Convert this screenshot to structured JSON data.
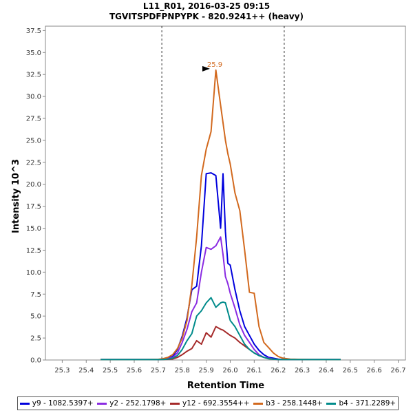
{
  "chart_data": {
    "type": "line",
    "title": "L11_R01, 2016-03-25 09:15",
    "subtitle": "TGVITSPDFPNPYPK - 820.9241++ (heavy)",
    "xlabel": "Retention Time",
    "ylabel": "Intensity 10^3",
    "xlim": [
      25.23,
      26.73
    ],
    "ylim": [
      0,
      38
    ],
    "xticks": [
      "25.3",
      "25.4",
      "25.5",
      "25.6",
      "25.7",
      "25.8",
      "25.9",
      "26.0",
      "26.1",
      "26.2",
      "26.3",
      "26.4",
      "26.5",
      "26.6",
      "26.7"
    ],
    "yticks": [
      "0.0",
      "2.5",
      "5.0",
      "7.5",
      "10.0",
      "12.5",
      "15.0",
      "17.5",
      "20.0",
      "22.5",
      "25.0",
      "27.5",
      "30.0",
      "32.5",
      "35.0",
      "37.5"
    ],
    "vlines": [
      25.715,
      26.225
    ],
    "peak_annotation": {
      "x": 25.924,
      "y": 33.0,
      "label": "25.9",
      "color": "#d2691e"
    },
    "grid": false,
    "legend_position": "bottom",
    "x": [
      25.46,
      25.5,
      25.55,
      25.6,
      25.65,
      25.7,
      25.72,
      25.74,
      25.76,
      25.78,
      25.8,
      25.82,
      25.84,
      25.86,
      25.88,
      25.9,
      25.92,
      25.94,
      25.96,
      25.97,
      25.98,
      25.99,
      26.0,
      26.02,
      26.04,
      26.06,
      26.08,
      26.1,
      26.12,
      26.14,
      26.16,
      26.18,
      26.2,
      26.22,
      26.25,
      26.3,
      26.35,
      26.4,
      26.46
    ],
    "series": [
      {
        "name": "y9 - 1082.5397+",
        "color": "#0000dd",
        "values": [
          0.05,
          0.05,
          0.05,
          0.05,
          0.05,
          0.06,
          0.1,
          0.2,
          0.4,
          1.2,
          2.7,
          4.8,
          8.0,
          8.4,
          13.0,
          21.2,
          21.3,
          21.0,
          15.0,
          21.2,
          14.6,
          11.0,
          10.8,
          8.0,
          5.6,
          3.8,
          2.8,
          1.8,
          1.1,
          0.6,
          0.3,
          0.2,
          0.1,
          0.06,
          0.05,
          0.05,
          0.05,
          0.05,
          0.05
        ]
      },
      {
        "name": "y2 - 252.1798+",
        "color": "#8a2be2",
        "values": [
          0.05,
          0.05,
          0.05,
          0.05,
          0.05,
          0.05,
          0.08,
          0.15,
          0.3,
          0.8,
          2.0,
          3.5,
          5.5,
          6.5,
          10.0,
          12.8,
          12.6,
          13.0,
          14.0,
          12.0,
          9.5,
          8.7,
          7.6,
          5.9,
          4.0,
          2.8,
          2.0,
          1.2,
          0.6,
          0.3,
          0.2,
          0.1,
          0.05,
          0.05,
          0.05,
          0.05,
          0.05,
          0.05,
          0.05
        ]
      },
      {
        "name": "y12 - 692.3554++",
        "color": "#a52a2a",
        "values": [
          0.05,
          0.05,
          0.05,
          0.05,
          0.05,
          0.05,
          0.06,
          0.08,
          0.12,
          0.3,
          0.6,
          1.0,
          1.3,
          2.2,
          1.8,
          3.1,
          2.6,
          3.8,
          3.5,
          3.4,
          3.2,
          3.0,
          2.8,
          2.5,
          2.0,
          1.6,
          1.2,
          0.8,
          0.5,
          0.3,
          0.15,
          0.1,
          0.05,
          0.05,
          0.05,
          0.05,
          0.05,
          0.05,
          0.05
        ]
      },
      {
        "name": "b3 - 258.1448+",
        "color": "#d2691e",
        "values": [
          0.05,
          0.05,
          0.05,
          0.05,
          0.05,
          0.08,
          0.15,
          0.3,
          0.6,
          1.3,
          2.5,
          4.5,
          8.5,
          14.0,
          21.0,
          24.0,
          26.0,
          33.0,
          29.0,
          27.0,
          25.0,
          23.5,
          22.3,
          19.0,
          17.0,
          12.5,
          7.7,
          7.6,
          3.8,
          2.0,
          1.4,
          0.8,
          0.4,
          0.2,
          0.1,
          0.07,
          0.05,
          0.05,
          0.05
        ]
      },
      {
        "name": "b4 - 371.2289+",
        "color": "#008b8b",
        "values": [
          0.05,
          0.05,
          0.05,
          0.05,
          0.05,
          0.05,
          0.06,
          0.1,
          0.2,
          0.5,
          1.2,
          2.2,
          3.0,
          5.0,
          5.6,
          6.5,
          7.1,
          6.0,
          6.5,
          6.6,
          6.5,
          5.5,
          4.5,
          3.8,
          2.8,
          1.8,
          1.2,
          0.8,
          0.5,
          0.3,
          0.15,
          0.1,
          0.05,
          0.05,
          0.05,
          0.05,
          0.05,
          0.05,
          0.05
        ]
      }
    ]
  }
}
